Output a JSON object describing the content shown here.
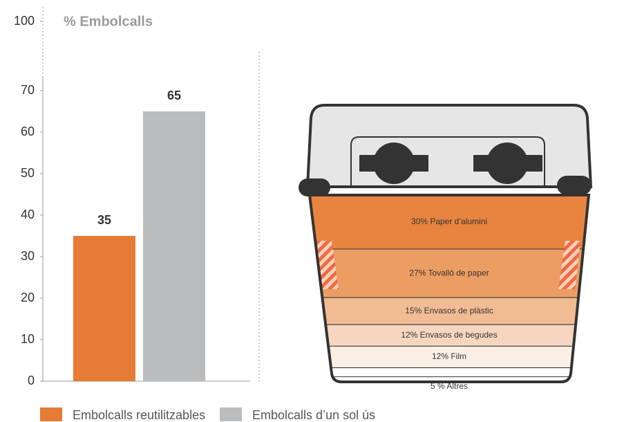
{
  "chart_data": [
    {
      "type": "bar",
      "title": "% Embolcalls",
      "categories": [
        "Embolcalls reutilitzables",
        "Embolcalls d’un sol ús"
      ],
      "values": [
        35,
        65
      ],
      "colors": [
        "#e57b34",
        "#bbbcbe"
      ],
      "ylim": [
        0,
        70
      ],
      "yticks": [
        0,
        10,
        20,
        30,
        40,
        50,
        60,
        70,
        100
      ],
      "axis_break": true,
      "grid": false
    },
    {
      "type": "container",
      "labels": [
        "30% Paper d’alumini",
        "27% Tovalló de paper",
        "15% Envasos de plàstic",
        "12% Envasos de begudes",
        "12% Film",
        "5 % Altres"
      ],
      "values": [
        30,
        27,
        15,
        12,
        12,
        5
      ],
      "colors": [
        "#e8843f",
        "#eb9d62",
        "#f1bc93",
        "#f6d6c0",
        "#fbeee5",
        "#ffffff"
      ]
    }
  ]
}
